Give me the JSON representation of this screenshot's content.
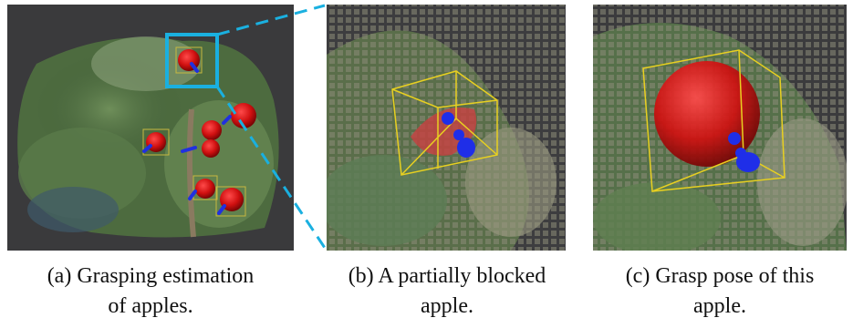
{
  "panels": [
    {
      "caption": [
        "(a) Grasping estimation",
        "of apples."
      ]
    },
    {
      "caption": [
        "(b) A partially blocked",
        "apple."
      ]
    },
    {
      "caption": [
        "(c) Grasp pose of this",
        "apple."
      ]
    }
  ]
}
